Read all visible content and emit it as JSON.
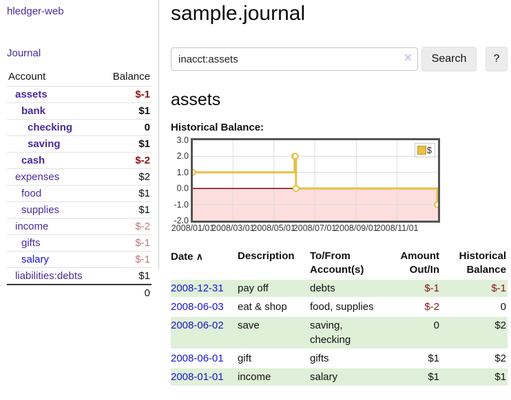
{
  "colors": {
    "link_purple": "#4a2b9b",
    "link_blue": "#1414d6",
    "negative_strong": "#8b1414",
    "negative_faded": "#bc7878",
    "row_green": "#dff0d8",
    "chart_gold": "#e8bf45"
  },
  "app": {
    "brand": "hledger-web",
    "nav_journal": "Journal"
  },
  "sidebar": {
    "col_account": "Account",
    "col_balance": "Balance",
    "accounts": [
      {
        "name": "assets",
        "balance": "$-1"
      },
      {
        "name": "bank",
        "balance": "$1"
      },
      {
        "name": "checking",
        "balance": "0"
      },
      {
        "name": "saving",
        "balance": "$1"
      },
      {
        "name": "cash",
        "balance": "$-2"
      },
      {
        "name": "expenses",
        "balance": "$2"
      },
      {
        "name": "food",
        "balance": "$1"
      },
      {
        "name": "supplies",
        "balance": "$1"
      },
      {
        "name": "income",
        "balance": "$-2"
      },
      {
        "name": "gifts",
        "balance": "$-1"
      },
      {
        "name": "salary",
        "balance": "$-1"
      },
      {
        "name": "liabilities:debts",
        "balance": "$1"
      }
    ],
    "total": "0"
  },
  "main": {
    "title": "sample.journal",
    "search": {
      "value": "inacct:assets",
      "clear_icon": "×",
      "button_label": "Search",
      "help_label": "?"
    },
    "account_heading": "assets",
    "chart_label": "Historical Balance:",
    "register": {
      "headers": {
        "date": "Date",
        "sort_icon": "∧",
        "description": "Description",
        "accounts": "To/From\nAccount(s)",
        "amount": "Amount\nOut/In",
        "balance": "Historical\nBalance"
      },
      "rows": [
        {
          "date": "2008-12-31",
          "description": "pay off",
          "accounts": "debts",
          "amount": "$-1",
          "balance": "$-1"
        },
        {
          "date": "2008-06-03",
          "description": "eat & shop",
          "accounts": "food, supplies",
          "amount": "$-2",
          "balance": "0"
        },
        {
          "date": "2008-06-02",
          "description": "save",
          "accounts": "saving, checking",
          "amount": "0",
          "balance": "$2"
        },
        {
          "date": "2008-06-01",
          "description": "gift",
          "accounts": "gifts",
          "amount": "$1",
          "balance": "$2"
        },
        {
          "date": "2008-01-01",
          "description": "income",
          "accounts": "salary",
          "amount": "$1",
          "balance": "$1"
        }
      ]
    }
  },
  "chart_data": {
    "type": "line",
    "step": true,
    "title": "Historical Balance:",
    "legend": "$",
    "legend_position": "top-right",
    "x_start": "2008-01-01",
    "xrange_days": 366,
    "ylim": [
      -2,
      3
    ],
    "yticks": [
      3.0,
      2.0,
      1.0,
      0.0,
      -1.0,
      -2.0
    ],
    "xticks": [
      "2008/01/01",
      "2008/03/01",
      "2008/05/01",
      "2008/07/01",
      "2008/09/01",
      "2008/11/01"
    ],
    "grid_color": "#dcdcdc",
    "negative_fill": "#fcdede",
    "zero_line_color": "#8b0000",
    "series": [
      {
        "name": "$",
        "color": "#e8bf45",
        "points": [
          [
            "2008-01-01",
            1
          ],
          [
            "2008-06-01",
            2
          ],
          [
            "2008-06-02",
            2
          ],
          [
            "2008-06-03",
            0
          ],
          [
            "2008-12-31",
            -1
          ]
        ]
      }
    ]
  }
}
